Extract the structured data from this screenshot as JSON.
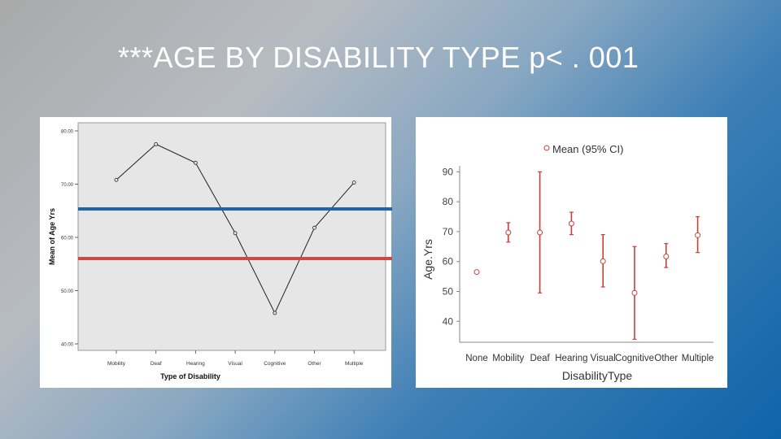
{
  "slide": {
    "title": "***AGE BY DISABILITY TYPE p< . 001"
  },
  "colors": {
    "blue_line": "#1f63a8",
    "red_line": "#c94a46",
    "right_marker": "#c9403b",
    "left_plot_bg": "#e6e6e6"
  },
  "chart_data": [
    {
      "type": "line",
      "x": [
        "Mobility",
        "Deaf",
        "Hearing",
        "Visual",
        "Cognitive",
        "Other",
        "Multiple"
      ],
      "series": [
        {
          "values": [
            70.8,
            77.5,
            74.0,
            60.8,
            45.8,
            61.8,
            70.3
          ]
        }
      ],
      "xlabel": "Type of Disability",
      "ylabel": "Mean of Age Yrs",
      "ylim": [
        40,
        80
      ],
      "yticks": [
        "40.00",
        "50.00",
        "60.00",
        "70.00",
        "80.00"
      ],
      "grid": false,
      "reference_lines": [
        {
          "color": "blue",
          "value": 65.3
        },
        {
          "color": "red",
          "value": 56.0
        }
      ]
    },
    {
      "type": "scatter",
      "legend": "Mean (95% CI)",
      "legend_position": "top",
      "x": [
        "None",
        "Mobility",
        "Deaf",
        "Hearing",
        "Visual",
        "Cognitive",
        "Other",
        "Multiple"
      ],
      "series": [
        {
          "means": [
            56.5,
            69.7,
            69.7,
            72.7,
            60.1,
            49.5,
            61.7,
            68.8
          ],
          "lower": [
            null,
            66.5,
            49.5,
            69.0,
            51.5,
            34.0,
            58.0,
            63.0
          ],
          "upper": [
            null,
            73.0,
            90.0,
            76.5,
            69.0,
            65.0,
            66.0,
            75.0
          ]
        }
      ],
      "xlabel": "DisabilityType",
      "ylabel": "Age.Yrs",
      "ylim": [
        33,
        92
      ],
      "yticks": [
        40,
        50,
        60,
        70,
        80,
        90
      ],
      "grid": false
    }
  ]
}
